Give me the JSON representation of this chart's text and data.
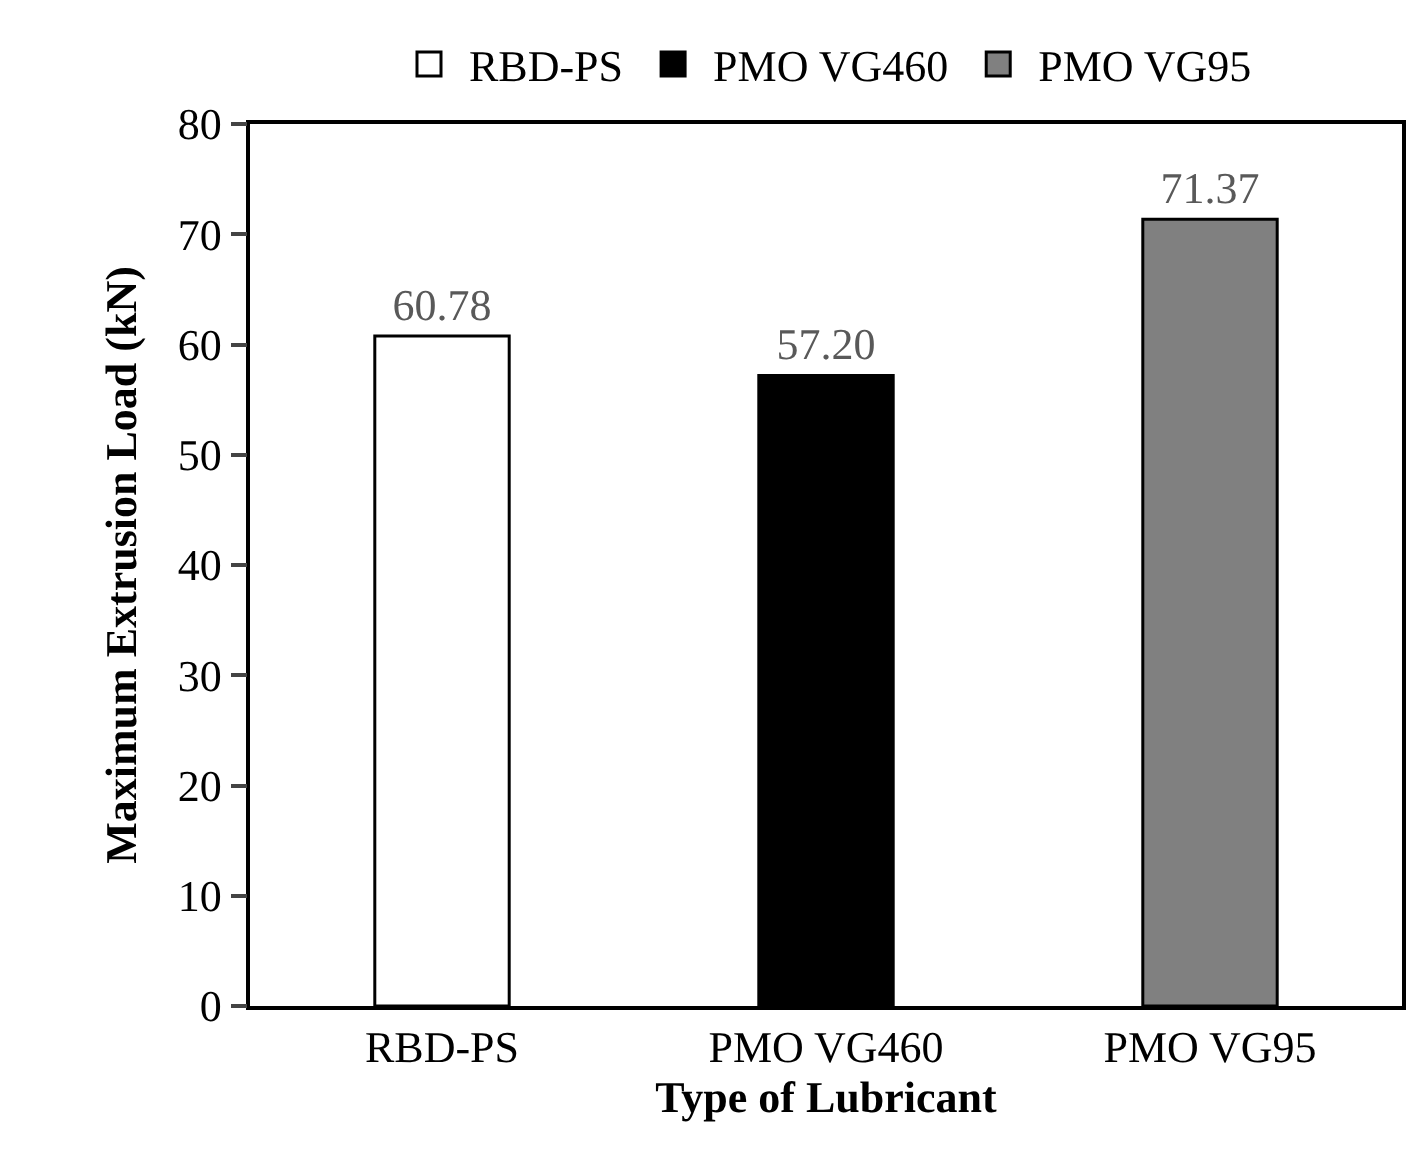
{
  "chart_data": {
    "type": "bar",
    "xlabel": "Type of Lubricant",
    "ylabel": "Maximum Extrusion Load (kN)",
    "categories": [
      "RBD-PS",
      "PMO VG460",
      "PMO VG95"
    ],
    "series": [
      {
        "name": "RBD-PS",
        "color": "#ffffff",
        "values": [
          60.78,
          null,
          null
        ],
        "value_labels": [
          "60.78",
          null,
          null
        ]
      },
      {
        "name": "PMO VG460",
        "color": "#000000",
        "values": [
          null,
          57.2,
          null
        ],
        "value_labels": [
          null,
          "57.20",
          null
        ]
      },
      {
        "name": "PMO VG95",
        "color": "#808080",
        "values": [
          null,
          null,
          71.37
        ],
        "value_labels": [
          null,
          null,
          "71.37"
        ]
      }
    ],
    "ylim": [
      0,
      80
    ],
    "yticks": [
      0,
      10,
      20,
      30,
      40,
      50,
      60,
      70,
      80
    ],
    "grid": false,
    "legend": "top"
  }
}
